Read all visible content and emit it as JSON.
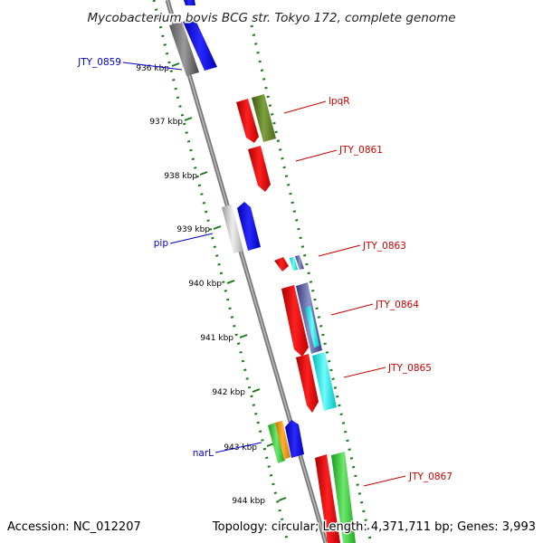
{
  "title": "Mycobacterium bovis BCG str. Tokyo 172, complete genome",
  "footer": {
    "accession": "Accession: NC_012207",
    "summary": "Topology: circular; Length: 4,371,711 bp; Genes: 3,993"
  },
  "colors": {
    "backbone": "#7a7a7a",
    "tick": "#1a7a1a",
    "reverse_label": "#0000cc",
    "forward_label": "#cc0000"
  },
  "ticks": [
    "936 kbp",
    "937 kbp",
    "938 kbp",
    "939 kbp",
    "940 kbp",
    "941 kbp",
    "942 kbp",
    "943 kbp",
    "944 kbp"
  ],
  "gene_labels": [
    {
      "name": "JTY_0859",
      "strand": "reverse"
    },
    {
      "name": "lpqR",
      "strand": "forward"
    },
    {
      "name": "JTY_0861",
      "strand": "forward"
    },
    {
      "name": "pip",
      "strand": "reverse"
    },
    {
      "name": "JTY_0863",
      "strand": "forward"
    },
    {
      "name": "JTY_0864",
      "strand": "forward"
    },
    {
      "name": "JTY_0865",
      "strand": "forward"
    },
    {
      "name": "narL",
      "strand": "reverse"
    },
    {
      "name": "JTY_0867",
      "strand": "forward"
    }
  ]
}
